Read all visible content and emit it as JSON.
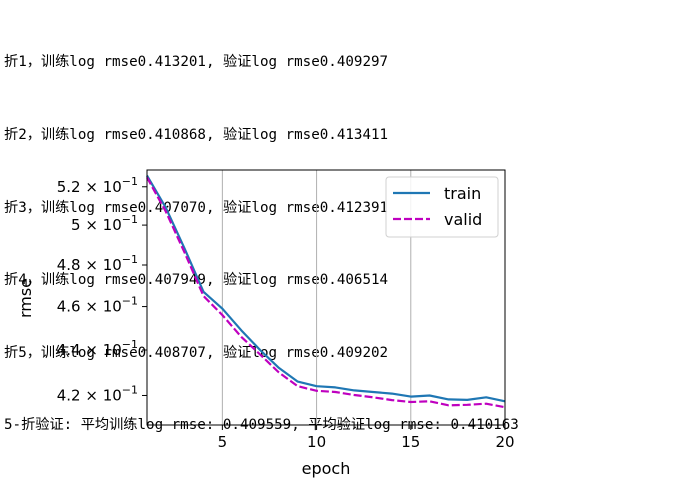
{
  "console_lines": [
    "折1，训练log rmse0.413201, 验证log rmse0.409297",
    "折2，训练log rmse0.410868, 验证log rmse0.413411",
    "折3，训练log rmse0.407070, 验证log rmse0.412391",
    "折4，训练log rmse0.407949, 验证log rmse0.406514",
    "折5，训练log rmse0.408707, 验证log rmse0.409202",
    "5-折验证: 平均训练log rmse: 0.409559, 平均验证log rmse: 0.410163"
  ],
  "chart_data": {
    "type": "line",
    "xlabel": "epoch",
    "ylabel": "rmse",
    "xlim": [
      1,
      20
    ],
    "ylim": [
      0.4075,
      0.529
    ],
    "yscale": "log",
    "xticks": [
      5,
      10,
      15,
      20
    ],
    "yticks": [
      {
        "value": 0.52,
        "mantissa": "5.2",
        "exponent": "−1"
      },
      {
        "value": 0.5,
        "mantissa": "5",
        "exponent": "−1"
      },
      {
        "value": 0.48,
        "mantissa": "4.8",
        "exponent": "−1"
      },
      {
        "value": 0.46,
        "mantissa": "4.6",
        "exponent": "−1"
      },
      {
        "value": 0.44,
        "mantissa": "4.4",
        "exponent": "−1"
      },
      {
        "value": 0.42,
        "mantissa": "4.2",
        "exponent": "−1"
      }
    ],
    "grid": "x",
    "legend_position": "upper right",
    "x": [
      1,
      2,
      3,
      4,
      5,
      6,
      7,
      8,
      9,
      10,
      11,
      12,
      13,
      14,
      15,
      16,
      17,
      18,
      19,
      20
    ],
    "series": [
      {
        "name": "train",
        "color": "#1f77b4",
        "style": "solid",
        "values": [
          0.526,
          0.509,
          0.488,
          0.467,
          0.459,
          0.449,
          0.44,
          0.432,
          0.426,
          0.424,
          0.4235,
          0.4222,
          0.4215,
          0.4208,
          0.4195,
          0.42,
          0.4183,
          0.4181,
          0.4192,
          0.4175
        ]
      },
      {
        "name": "valid",
        "color": "#bf00bf",
        "style": "dashed",
        "values": [
          0.525,
          0.507,
          0.486,
          0.465,
          0.456,
          0.446,
          0.438,
          0.43,
          0.424,
          0.422,
          0.4215,
          0.4202,
          0.4192,
          0.418,
          0.4172,
          0.4175,
          0.4158,
          0.416,
          0.4165,
          0.415
        ]
      }
    ]
  }
}
